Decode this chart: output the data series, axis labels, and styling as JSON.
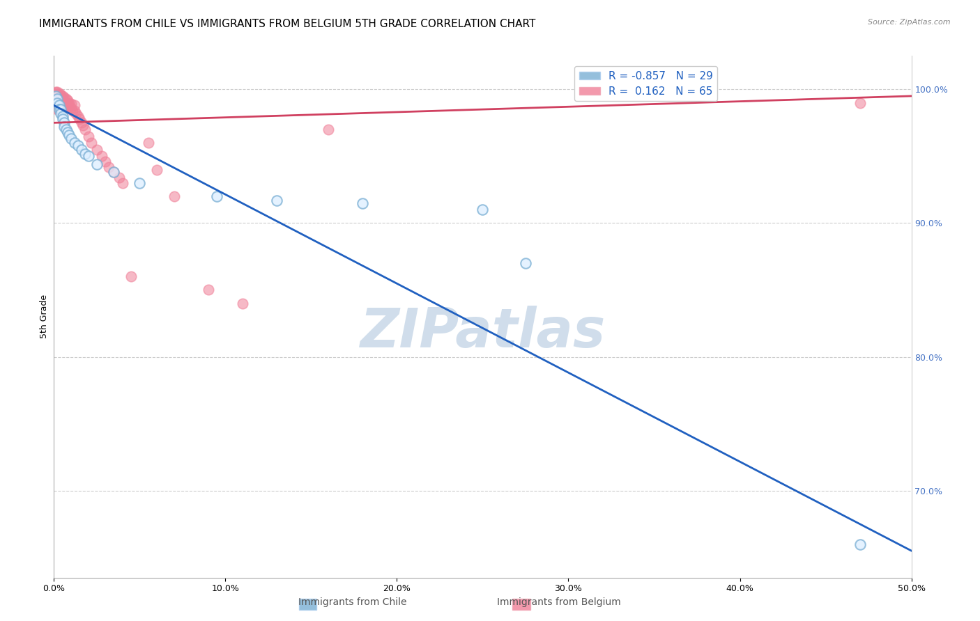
{
  "title": "IMMIGRANTS FROM CHILE VS IMMIGRANTS FROM BELGIUM 5TH GRADE CORRELATION CHART",
  "source_text": "Source: ZipAtlas.com",
  "ylabel": "5th Grade",
  "xlim": [
    0.0,
    0.5
  ],
  "ylim": [
    0.635,
    1.025
  ],
  "xtick_labels": [
    "0.0%",
    "10.0%",
    "20.0%",
    "30.0%",
    "40.0%",
    "50.0%"
  ],
  "xtick_vals": [
    0.0,
    0.1,
    0.2,
    0.3,
    0.4,
    0.5
  ],
  "ytick_labels_right": [
    "100.0%",
    "90.0%",
    "80.0%",
    "70.0%"
  ],
  "ytick_vals_right": [
    1.0,
    0.9,
    0.8,
    0.7
  ],
  "chile_color": "#7aafd4",
  "belgium_color": "#f08098",
  "chile_line_color": "#2060c0",
  "belgium_line_color": "#d04060",
  "watermark": "ZIPatlas",
  "watermark_color": "#c8d8e8",
  "chile_points_x": [
    0.001,
    0.002,
    0.002,
    0.003,
    0.003,
    0.004,
    0.004,
    0.005,
    0.005,
    0.006,
    0.006,
    0.007,
    0.008,
    0.009,
    0.01,
    0.012,
    0.014,
    0.016,
    0.018,
    0.02,
    0.025,
    0.035,
    0.05,
    0.095,
    0.13,
    0.18,
    0.25,
    0.275,
    0.47
  ],
  "chile_points_y": [
    0.995,
    0.993,
    0.99,
    0.988,
    0.985,
    0.985,
    0.982,
    0.98,
    0.978,
    0.975,
    0.972,
    0.97,
    0.968,
    0.966,
    0.963,
    0.96,
    0.958,
    0.955,
    0.952,
    0.95,
    0.944,
    0.938,
    0.93,
    0.92,
    0.917,
    0.915,
    0.91,
    0.87,
    0.66
  ],
  "belgium_points_x": [
    0.001,
    0.001,
    0.001,
    0.001,
    0.001,
    0.002,
    0.002,
    0.002,
    0.002,
    0.002,
    0.002,
    0.003,
    0.003,
    0.003,
    0.003,
    0.003,
    0.004,
    0.004,
    0.004,
    0.004,
    0.005,
    0.005,
    0.005,
    0.005,
    0.005,
    0.006,
    0.006,
    0.006,
    0.006,
    0.007,
    0.007,
    0.007,
    0.008,
    0.008,
    0.008,
    0.009,
    0.009,
    0.01,
    0.01,
    0.011,
    0.012,
    0.012,
    0.013,
    0.014,
    0.015,
    0.016,
    0.017,
    0.018,
    0.02,
    0.022,
    0.025,
    0.028,
    0.03,
    0.032,
    0.035,
    0.038,
    0.04,
    0.045,
    0.055,
    0.06,
    0.07,
    0.09,
    0.11,
    0.16,
    0.47
  ],
  "belgium_points_y": [
    0.998,
    0.997,
    0.995,
    0.993,
    0.99,
    0.998,
    0.995,
    0.993,
    0.99,
    0.988,
    0.985,
    0.997,
    0.995,
    0.993,
    0.99,
    0.988,
    0.996,
    0.994,
    0.991,
    0.988,
    0.995,
    0.993,
    0.99,
    0.988,
    0.985,
    0.994,
    0.991,
    0.989,
    0.986,
    0.993,
    0.99,
    0.987,
    0.992,
    0.989,
    0.986,
    0.99,
    0.988,
    0.989,
    0.986,
    0.984,
    0.988,
    0.984,
    0.982,
    0.98,
    0.978,
    0.975,
    0.973,
    0.97,
    0.965,
    0.96,
    0.955,
    0.95,
    0.946,
    0.942,
    0.938,
    0.934,
    0.93,
    0.86,
    0.96,
    0.94,
    0.92,
    0.85,
    0.84,
    0.97,
    0.99
  ],
  "title_fontsize": 11,
  "axis_label_fontsize": 9,
  "tick_fontsize": 9,
  "right_tick_color": "#4472c4",
  "legend_r1": "R = -0.857",
  "legend_n1": "N = 29",
  "legend_r2": "R =  0.162",
  "legend_n2": "N = 65",
  "legend_color": "#2060c0",
  "bottom_legend_chile": "Immigrants from Chile",
  "bottom_legend_belgium": "Immigrants from Belgium"
}
